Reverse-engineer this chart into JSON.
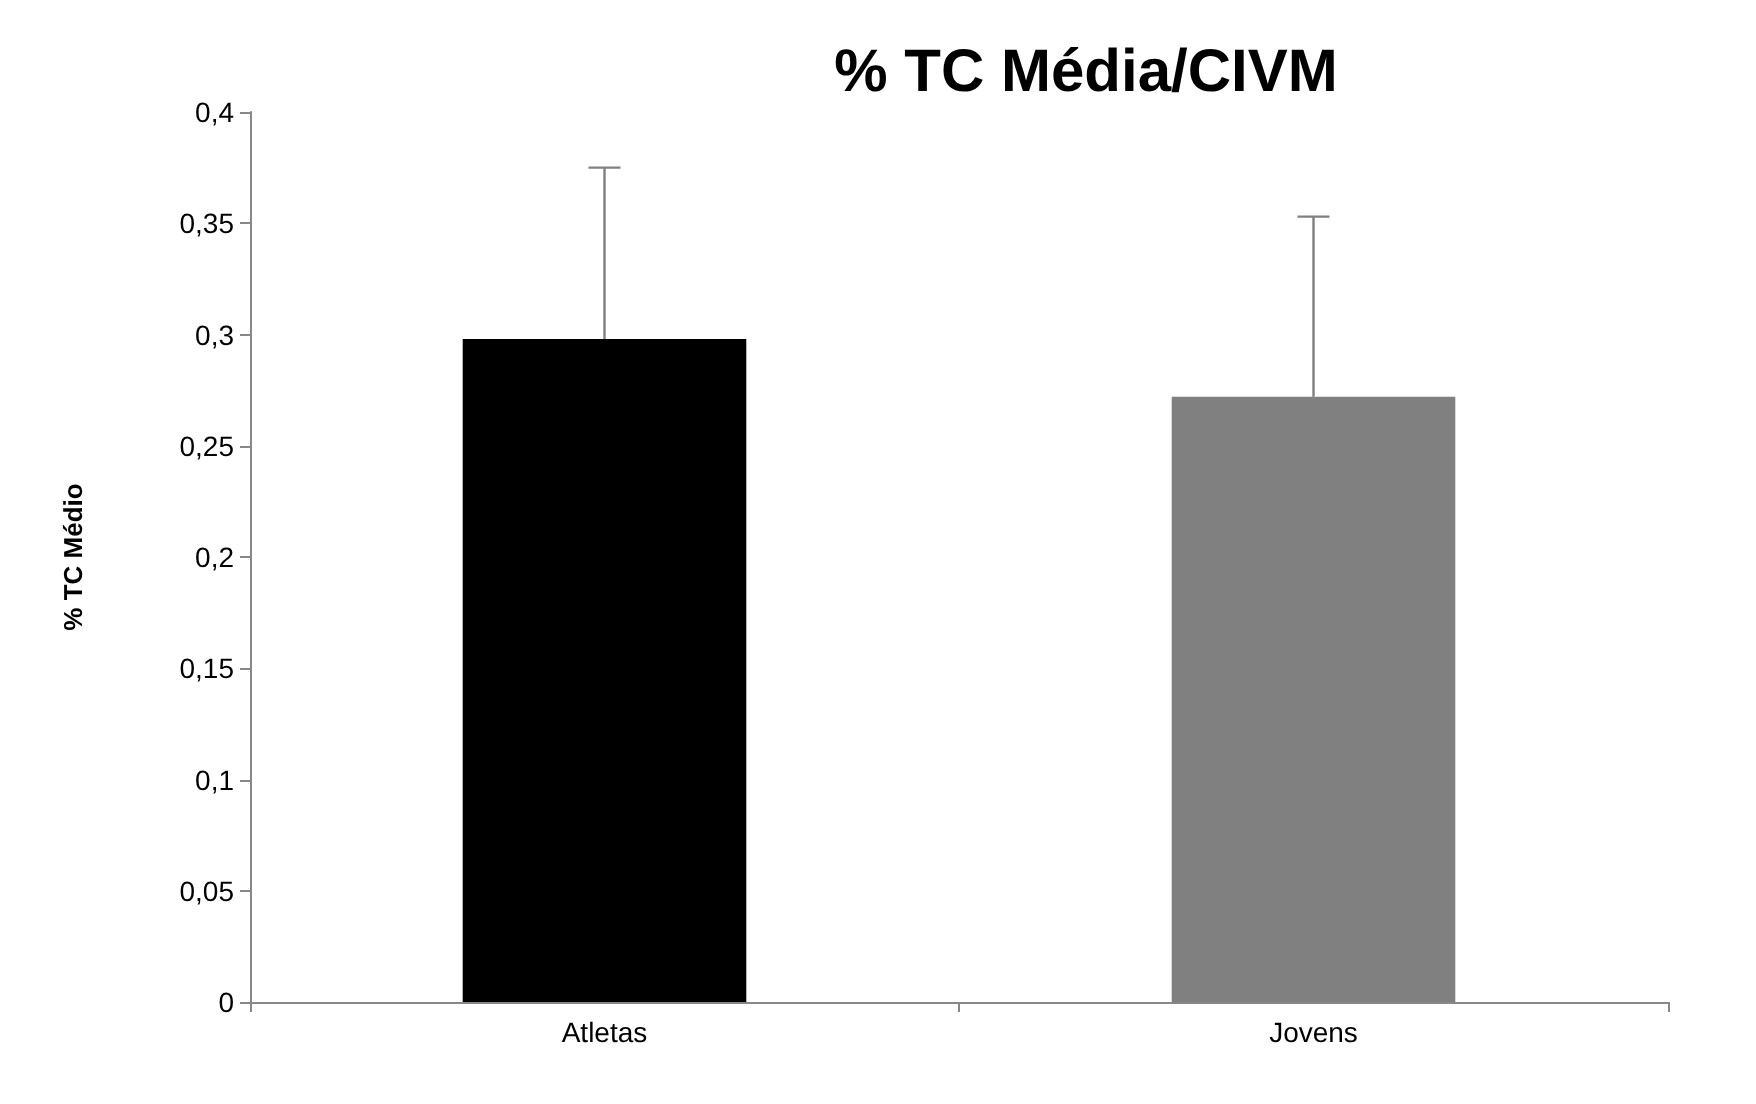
{
  "chart_data": {
    "type": "bar",
    "title": "% TC Média/CIVM",
    "ylabel": "% TC Médio",
    "categories": [
      "Atletas",
      "Jovens"
    ],
    "values": [
      0.298,
      0.272
    ],
    "colors": [
      "#000000",
      "#808080"
    ],
    "errors": [
      [
        0.298,
        0.375
      ],
      [
        0.272,
        0.353
      ]
    ],
    "ylim": [
      0,
      0.4
    ],
    "yticks": [
      0,
      {
        "value": 0.05,
        "label": "0,05"
      },
      {
        "value": 0.1,
        "label": "0,1"
      },
      {
        "value": 0.15,
        "label": "0,15"
      },
      {
        "value": 0.2,
        "label": "0,2"
      },
      {
        "value": 0.25,
        "label": "0,25"
      },
      {
        "value": 0.3,
        "label": "0,3"
      },
      {
        "value": 0.35,
        "label": "0,35"
      },
      {
        "value": 0.4,
        "label": "0,4"
      }
    ],
    "grid": false
  }
}
